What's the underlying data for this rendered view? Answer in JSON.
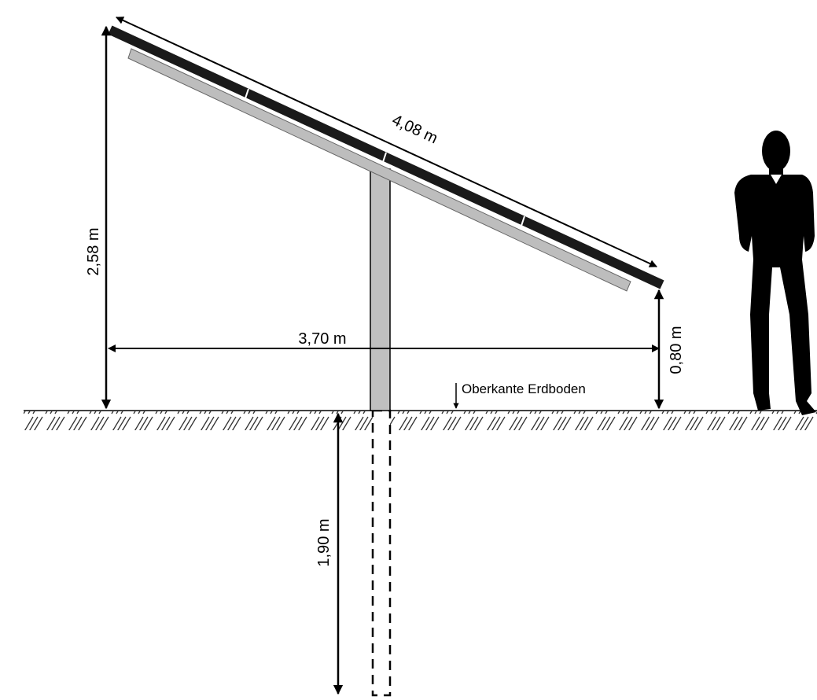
{
  "dimensions": {
    "panel_length": {
      "label": "4,08 m"
    },
    "top_height": {
      "label": "2,58 m"
    },
    "horizontal_span": {
      "label": "3,70 m"
    },
    "bottom_height": {
      "label": "0,80 m"
    },
    "foundation_depth": {
      "label": "1,90 m"
    }
  },
  "ground": {
    "label": "Oberkante Erdboden"
  }
}
